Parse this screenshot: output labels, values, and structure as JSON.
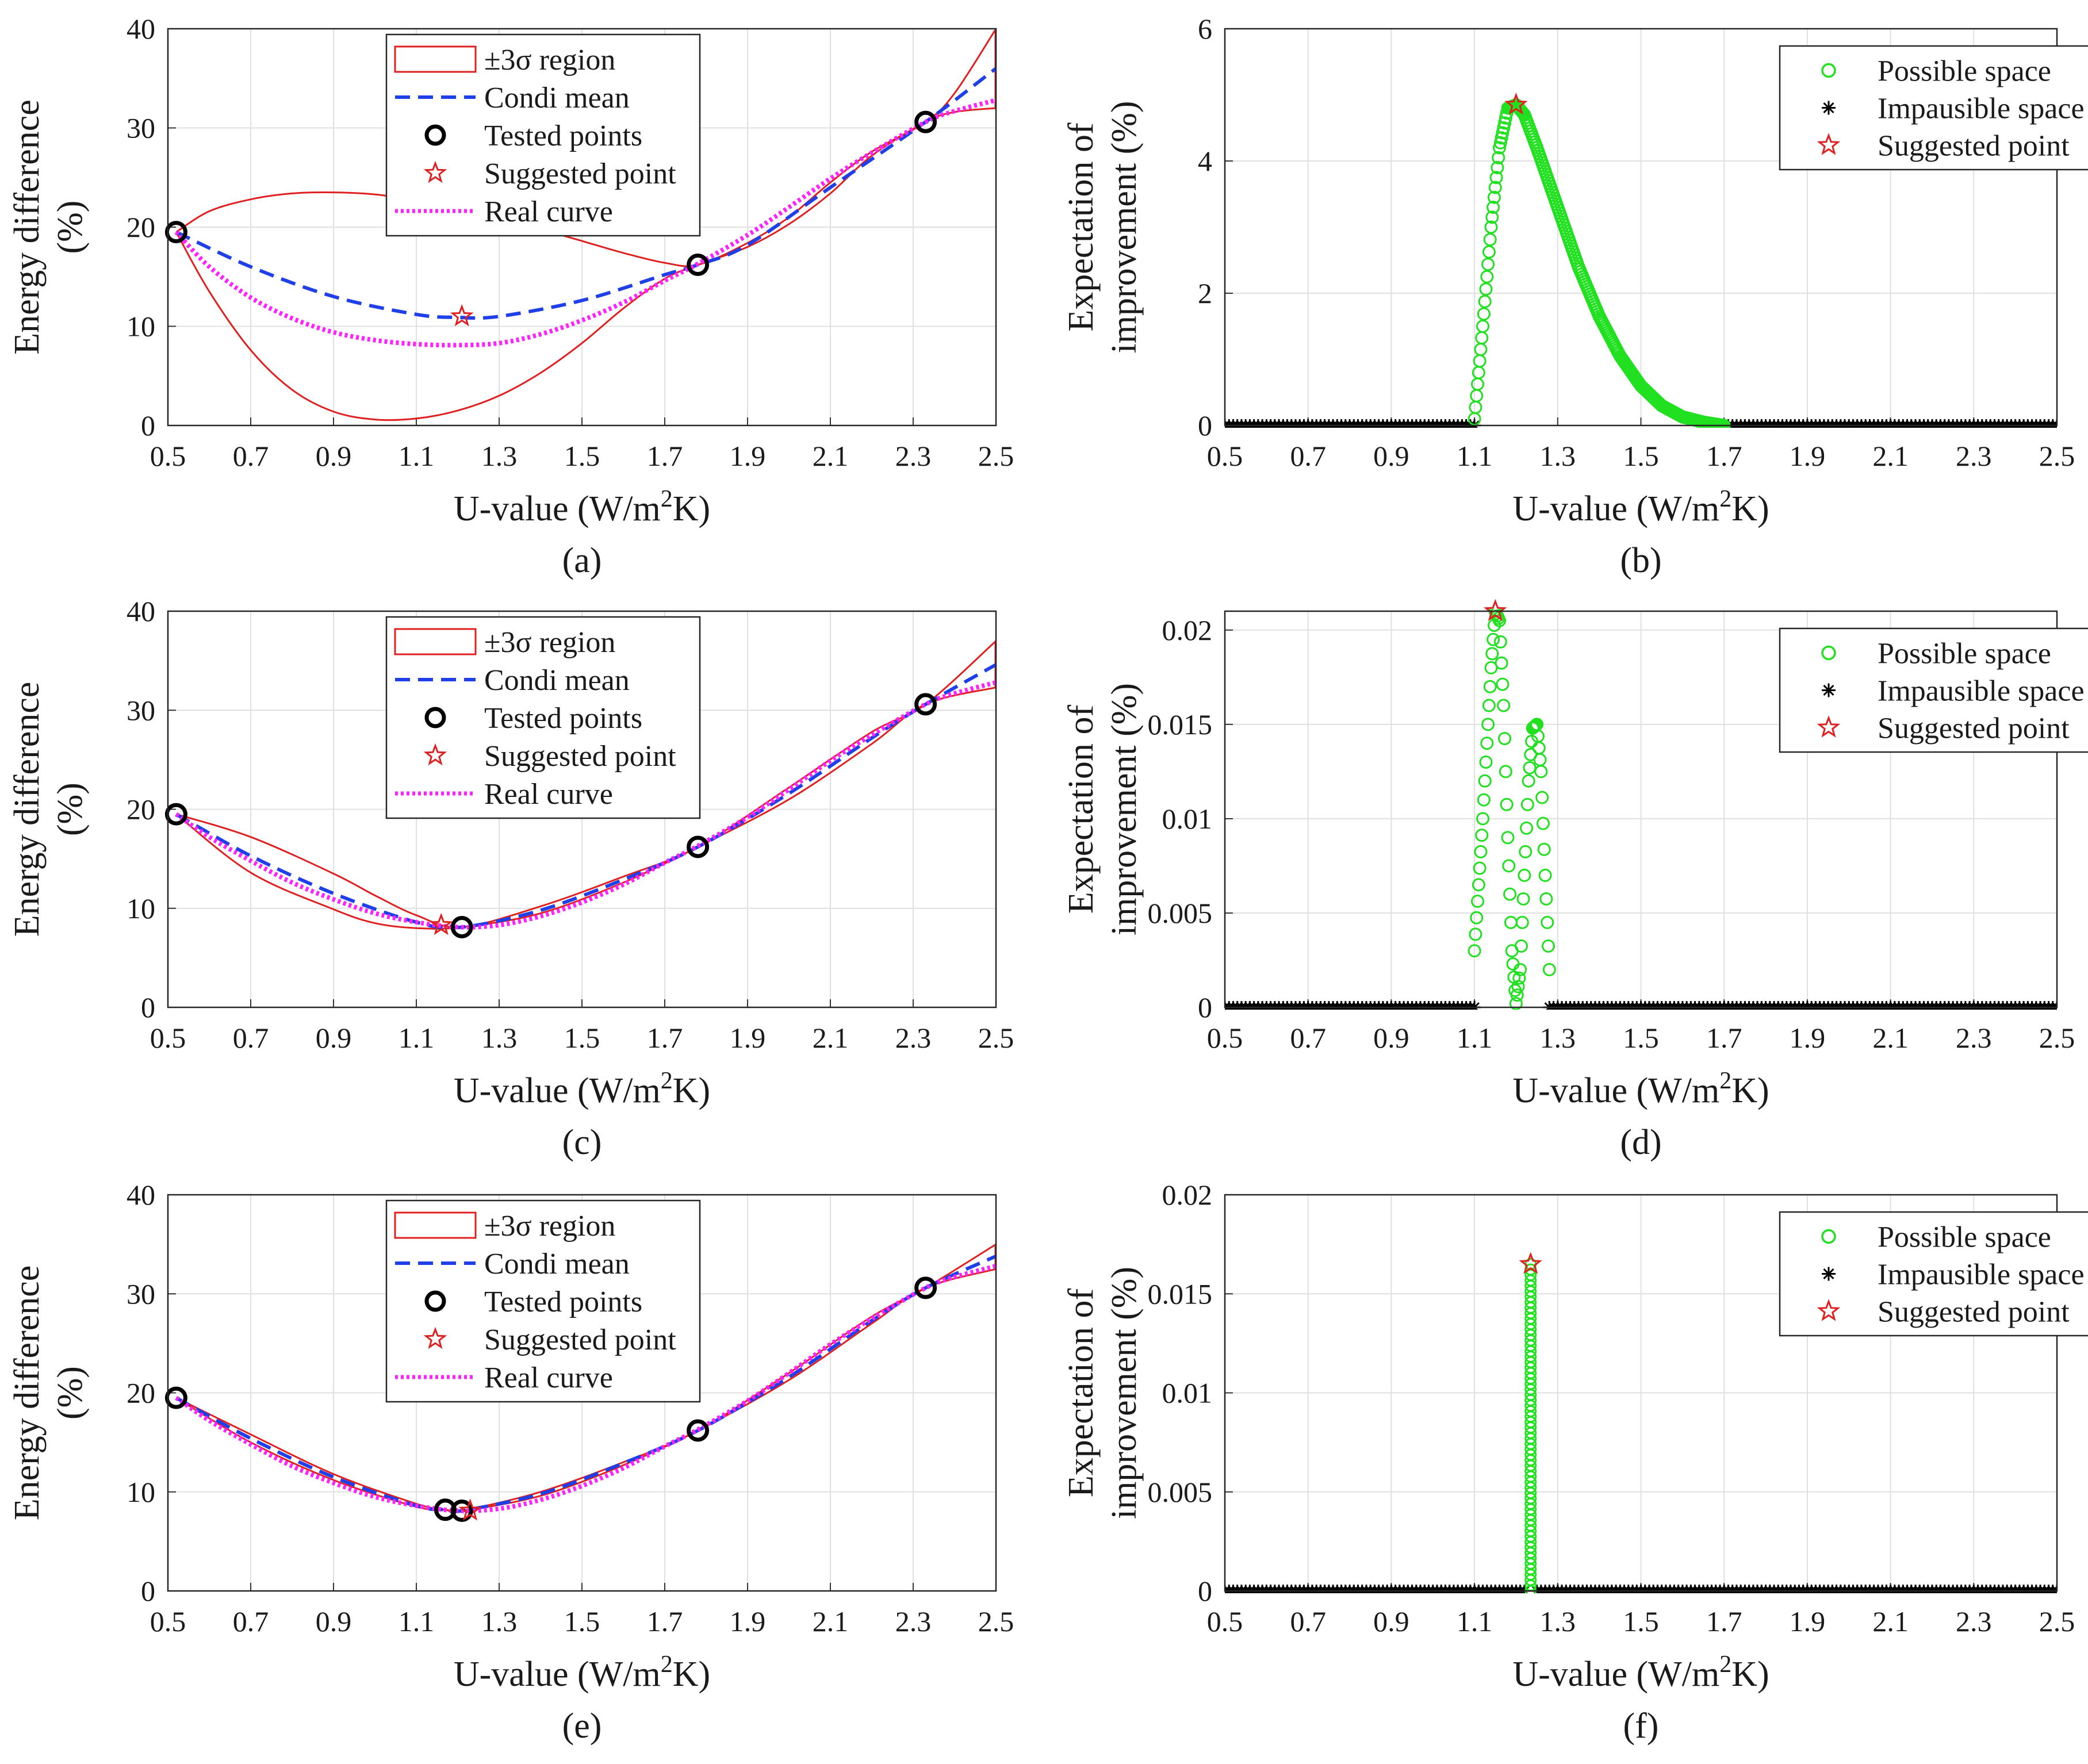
{
  "figure": {
    "xlabel": "U-value (W/m",
    "xlabel_sup": "2",
    "xlabel_tail": "K)",
    "x_ticks": [
      "0.5",
      "0.7",
      "0.9",
      "1.1",
      "1.3",
      "1.5",
      "1.7",
      "1.9",
      "2.1",
      "2.3",
      "2.5"
    ]
  },
  "chart_data": [
    {
      "id": "a",
      "panel_label": "(a)",
      "type": "line",
      "ylabel_line1": "Energy difference",
      "ylabel_line2": "(%)",
      "xlim": [
        0.5,
        2.5
      ],
      "ylim": [
        0,
        40
      ],
      "y_ticks": [
        "0",
        "10",
        "20",
        "30",
        "40"
      ],
      "legend": [
        "±3σ region",
        "Condi mean",
        "Tested points",
        "Suggested point",
        "Real curve"
      ],
      "legend_position": "top-center",
      "series": [
        {
          "name": "±3σ region upper",
          "kind": "band",
          "x": [
            0.52,
            0.6,
            0.7,
            0.8,
            0.9,
            1.0,
            1.1,
            1.2,
            1.3,
            1.4,
            1.5,
            1.6,
            1.7,
            1.78,
            1.9,
            2.0,
            2.1,
            2.2,
            2.33,
            2.4,
            2.5
          ],
          "y": [
            19.5,
            21.6,
            22.8,
            23.4,
            23.5,
            23.3,
            22.7,
            21.9,
            20.9,
            19.8,
            18.6,
            17.4,
            16.4,
            16.2,
            18.4,
            21.0,
            24.5,
            27.6,
            30.6,
            33.5,
            40.0
          ]
        },
        {
          "name": "±3σ region lower",
          "kind": "band",
          "x": [
            0.52,
            0.6,
            0.7,
            0.8,
            0.9,
            1.0,
            1.1,
            1.2,
            1.3,
            1.4,
            1.5,
            1.6,
            1.7,
            1.78,
            1.9,
            2.0,
            2.1,
            2.2,
            2.33,
            2.4,
            2.5
          ],
          "y": [
            19.5,
            13.5,
            7.6,
            3.6,
            1.4,
            0.6,
            0.7,
            1.5,
            3.0,
            5.3,
            8.3,
            11.8,
            14.8,
            16.2,
            18.0,
            20.3,
            23.4,
            27.2,
            30.6,
            31.6,
            32.0
          ]
        },
        {
          "name": "Condi mean",
          "kind": "dashed",
          "x": [
            0.52,
            0.7,
            0.9,
            1.1,
            1.2,
            1.3,
            1.5,
            1.7,
            1.78,
            1.9,
            2.1,
            2.33,
            2.5
          ],
          "y": [
            19.5,
            16.0,
            13.0,
            11.2,
            10.9,
            11.0,
            12.6,
            15.2,
            16.2,
            18.2,
            24.0,
            30.6,
            36.0
          ]
        },
        {
          "name": "Real curve",
          "kind": "dotted",
          "x": [
            0.52,
            0.6,
            0.7,
            0.8,
            0.9,
            1.0,
            1.1,
            1.2,
            1.3,
            1.4,
            1.5,
            1.6,
            1.7,
            1.78,
            1.9,
            2.0,
            2.1,
            2.2,
            2.33,
            2.4,
            2.5
          ],
          "y": [
            19.5,
            16.0,
            12.9,
            10.8,
            9.4,
            8.6,
            8.2,
            8.1,
            8.3,
            9.2,
            10.6,
            12.4,
            14.6,
            16.3,
            19.2,
            22.0,
            24.9,
            27.5,
            30.6,
            31.7,
            32.8
          ]
        },
        {
          "name": "Tested points",
          "kind": "circle",
          "x": [
            0.52,
            1.78,
            2.33
          ],
          "y": [
            19.5,
            16.2,
            30.6
          ]
        },
        {
          "name": "Suggested point",
          "kind": "star",
          "x": [
            1.21
          ],
          "y": [
            11.0
          ]
        }
      ]
    },
    {
      "id": "b",
      "panel_label": "(b)",
      "type": "scatter",
      "ylabel_line1": "Expectation of",
      "ylabel_line2": "improvement (%)",
      "xlim": [
        0.5,
        2.5
      ],
      "ylim": [
        0,
        6
      ],
      "y_ticks": [
        "0",
        "2",
        "4",
        "6"
      ],
      "legend": [
        "Possible space",
        "Impausible space",
        "Suggested point"
      ],
      "legend_position": "top-right",
      "series": [
        {
          "name": "Impausible space",
          "kind": "asterisk-range",
          "ranges": [
            [
              0.5,
              1.1
            ],
            [
              1.7,
              2.5
            ]
          ],
          "step": 0.01,
          "y": 0
        },
        {
          "name": "Possible space",
          "kind": "circle-curve",
          "x": [
            1.1,
            1.12,
            1.14,
            1.16,
            1.18,
            1.2,
            1.22,
            1.25,
            1.3,
            1.35,
            1.4,
            1.45,
            1.5,
            1.55,
            1.6,
            1.65,
            1.7
          ],
          "y": [
            0.1,
            1.5,
            3.0,
            4.2,
            4.8,
            4.85,
            4.7,
            4.2,
            3.3,
            2.4,
            1.65,
            1.05,
            0.6,
            0.3,
            0.13,
            0.05,
            0.0
          ]
        },
        {
          "name": "Suggested point",
          "kind": "star",
          "x": [
            1.2
          ],
          "y": [
            4.85
          ]
        }
      ]
    },
    {
      "id": "c",
      "panel_label": "(c)",
      "type": "line",
      "ylabel_line1": "Energy difference",
      "ylabel_line2": "(%)",
      "xlim": [
        0.5,
        2.5
      ],
      "ylim": [
        0,
        40
      ],
      "y_ticks": [
        "0",
        "10",
        "20",
        "30",
        "40"
      ],
      "legend": [
        "±3σ region",
        "Condi mean",
        "Tested points",
        "Suggested point",
        "Real curve"
      ],
      "legend_position": "top-center",
      "series": [
        {
          "name": "±3σ region upper",
          "kind": "band",
          "x": [
            0.52,
            0.7,
            0.9,
            1.0,
            1.1,
            1.21,
            1.4,
            1.6,
            1.78,
            2.0,
            2.2,
            2.33,
            2.5
          ],
          "y": [
            19.5,
            17.2,
            13.5,
            11.3,
            9.3,
            8.1,
            10.2,
            13.2,
            16.2,
            22.2,
            27.8,
            30.6,
            37.0
          ]
        },
        {
          "name": "±3σ region lower",
          "kind": "band",
          "x": [
            0.52,
            0.7,
            0.9,
            1.0,
            1.1,
            1.21,
            1.4,
            1.6,
            1.78,
            2.0,
            2.2,
            2.33,
            2.5
          ],
          "y": [
            19.5,
            13.6,
            9.9,
            8.5,
            8.0,
            8.1,
            9.5,
            12.6,
            16.2,
            21.0,
            26.6,
            30.6,
            32.3
          ]
        },
        {
          "name": "Condi mean",
          "kind": "dashed",
          "x": [
            0.52,
            0.7,
            0.9,
            1.1,
            1.21,
            1.4,
            1.6,
            1.78,
            2.0,
            2.2,
            2.33,
            2.5
          ],
          "y": [
            19.5,
            15.3,
            11.5,
            8.6,
            8.1,
            9.8,
            12.9,
            16.2,
            21.6,
            27.2,
            30.6,
            34.6
          ]
        },
        {
          "name": "Real curve",
          "kind": "dotted",
          "x": [
            0.52,
            0.6,
            0.7,
            0.8,
            0.9,
            1.0,
            1.1,
            1.2,
            1.3,
            1.4,
            1.5,
            1.6,
            1.7,
            1.78,
            1.9,
            2.0,
            2.1,
            2.2,
            2.33,
            2.4,
            2.5
          ],
          "y": [
            19.5,
            17.2,
            14.8,
            12.6,
            10.9,
            9.5,
            8.6,
            8.1,
            8.3,
            9.2,
            10.6,
            12.4,
            14.6,
            16.3,
            19.2,
            22.0,
            24.9,
            27.5,
            30.6,
            31.7,
            32.8
          ]
        },
        {
          "name": "Tested points",
          "kind": "circle",
          "x": [
            0.52,
            1.21,
            1.78,
            2.33
          ],
          "y": [
            19.5,
            8.1,
            16.2,
            30.6
          ]
        },
        {
          "name": "Suggested point",
          "kind": "star",
          "x": [
            1.16
          ],
          "y": [
            8.3
          ]
        }
      ]
    },
    {
      "id": "d",
      "panel_label": "(d)",
      "type": "scatter",
      "ylabel_line1": "Expectation of",
      "ylabel_line2": "improvement (%)",
      "xlim": [
        0.5,
        2.5
      ],
      "ylim": [
        0,
        0.021
      ],
      "y_ticks": [
        "0",
        "0.005",
        "0.01",
        "0.015",
        "0.02"
      ],
      "y_tick_values": [
        0,
        0.005,
        0.01,
        0.015,
        0.02
      ],
      "legend": [
        "Possible space",
        "Impausible space",
        "Suggested point"
      ],
      "legend_position": "top-right",
      "series": [
        {
          "name": "Impausible space",
          "kind": "asterisk-range",
          "ranges": [
            [
              0.5,
              1.1
            ],
            [
              1.28,
              2.5
            ]
          ],
          "step": 0.01,
          "y": 0
        },
        {
          "name": "Possible space",
          "kind": "circle-curve",
          "x": [
            1.1,
            1.12,
            1.14,
            1.15,
            1.16,
            1.17,
            1.18,
            1.19,
            1.2,
            1.21,
            1.22,
            1.23,
            1.24,
            1.25,
            1.26,
            1.27,
            1.28
          ],
          "y": [
            0.003,
            0.01,
            0.018,
            0.021,
            0.0205,
            0.016,
            0.009,
            0.003,
            0.0002,
            0.002,
            0.007,
            0.012,
            0.0148,
            0.015,
            0.0125,
            0.007,
            0.002
          ]
        },
        {
          "name": "Suggested point",
          "kind": "star",
          "x": [
            1.15
          ],
          "y": [
            0.021
          ]
        }
      ]
    },
    {
      "id": "e",
      "panel_label": "(e)",
      "type": "line",
      "ylabel_line1": "Energy difference",
      "ylabel_line2": "(%)",
      "xlim": [
        0.5,
        2.5
      ],
      "ylim": [
        0,
        40
      ],
      "y_ticks": [
        "0",
        "10",
        "20",
        "30",
        "40"
      ],
      "legend": [
        "±3σ region",
        "Condi mean",
        "Tested points",
        "Suggested point",
        "Real curve"
      ],
      "legend_position": "top-center",
      "series": [
        {
          "name": "±3σ region upper",
          "kind": "band",
          "x": [
            0.52,
            0.7,
            0.9,
            1.1,
            1.17,
            1.21,
            1.4,
            1.6,
            1.78,
            2.0,
            2.2,
            2.33,
            2.5
          ],
          "y": [
            19.5,
            15.8,
            11.8,
            8.8,
            8.2,
            8.1,
            10.0,
            13.0,
            16.2,
            22.0,
            27.7,
            30.6,
            35.0
          ]
        },
        {
          "name": "±3σ region lower",
          "kind": "band",
          "x": [
            0.52,
            0.7,
            0.9,
            1.1,
            1.17,
            1.21,
            1.4,
            1.6,
            1.78,
            2.0,
            2.2,
            2.33,
            2.5
          ],
          "y": [
            19.5,
            15.0,
            11.2,
            8.5,
            8.2,
            8.1,
            9.6,
            12.7,
            16.2,
            21.3,
            27.0,
            30.6,
            32.5
          ]
        },
        {
          "name": "Condi mean",
          "kind": "dashed",
          "x": [
            0.52,
            0.7,
            0.9,
            1.1,
            1.17,
            1.21,
            1.4,
            1.6,
            1.78,
            2.0,
            2.2,
            2.33,
            2.5
          ],
          "y": [
            19.5,
            15.4,
            11.5,
            8.6,
            8.2,
            8.1,
            9.8,
            12.9,
            16.2,
            21.6,
            27.3,
            30.6,
            33.8
          ]
        },
        {
          "name": "Real curve",
          "kind": "dotted",
          "x": [
            0.52,
            0.6,
            0.7,
            0.8,
            0.9,
            1.0,
            1.1,
            1.2,
            1.3,
            1.4,
            1.5,
            1.6,
            1.7,
            1.78,
            1.9,
            2.0,
            2.1,
            2.2,
            2.33,
            2.4,
            2.5
          ],
          "y": [
            19.5,
            17.2,
            14.8,
            12.6,
            10.9,
            9.5,
            8.6,
            8.1,
            8.3,
            9.2,
            10.6,
            12.4,
            14.6,
            16.3,
            19.2,
            22.0,
            24.9,
            27.5,
            30.6,
            31.7,
            32.8
          ]
        },
        {
          "name": "Tested points",
          "kind": "circle",
          "x": [
            0.52,
            1.17,
            1.21,
            1.78,
            2.33
          ],
          "y": [
            19.5,
            8.2,
            8.1,
            16.2,
            30.6
          ]
        },
        {
          "name": "Suggested point",
          "kind": "star",
          "x": [
            1.23
          ],
          "y": [
            8.1
          ]
        }
      ]
    },
    {
      "id": "f",
      "panel_label": "(f)",
      "type": "scatter",
      "ylabel_line1": "Expectation of",
      "ylabel_line2": "improvement (%)",
      "xlim": [
        0.5,
        2.5
      ],
      "ylim": [
        0,
        0.02
      ],
      "y_ticks": [
        "0",
        "0.005",
        "0.01",
        "0.015",
        "0.02"
      ],
      "y_tick_values": [
        0,
        0.005,
        0.01,
        0.015,
        0.02
      ],
      "legend": [
        "Possible space",
        "Impausible space",
        "Suggested point"
      ],
      "legend_position": "top-right",
      "series": [
        {
          "name": "Impausible space",
          "kind": "asterisk-range",
          "ranges": [
            [
              0.5,
              1.22
            ],
            [
              1.25,
              2.5
            ]
          ],
          "step": 0.01,
          "y": 0
        },
        {
          "name": "Possible space",
          "kind": "circle-column",
          "x": 1.235,
          "y_from": 0.0,
          "y_to": 0.0165
        },
        {
          "name": "Suggested point",
          "kind": "star",
          "x": [
            1.235
          ],
          "y": [
            0.0165
          ]
        }
      ]
    }
  ]
}
